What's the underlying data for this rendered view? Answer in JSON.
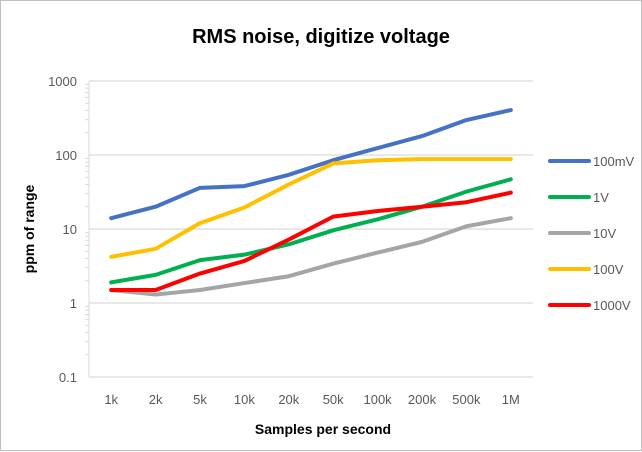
{
  "chart_data": {
    "type": "line",
    "title": "RMS noise, digitize voltage",
    "xlabel": "Samples per second",
    "ylabel": "ppm of range",
    "yscale": "log",
    "ylim": [
      0.1,
      1000
    ],
    "yticks": [
      "0.1",
      "1",
      "10",
      "100",
      "1000"
    ],
    "grid": true,
    "legend": "right",
    "categories": [
      "1k",
      "2k",
      "5k",
      "10k",
      "20k",
      "50k",
      "100k",
      "200k",
      "500k",
      "1M"
    ],
    "series": [
      {
        "name": "100mV",
        "color": "#4472c4",
        "values": [
          14,
          20,
          36,
          38,
          54,
          85,
          124,
          180,
          297,
          405
        ]
      },
      {
        "name": "1V",
        "color": "#00b050",
        "values": [
          1.9,
          2.4,
          3.8,
          4.5,
          6.2,
          9.6,
          13.5,
          20,
          32,
          47
        ]
      },
      {
        "name": "10V",
        "color": "#a5a5a5",
        "values": [
          1.5,
          1.3,
          1.5,
          1.86,
          2.3,
          3.4,
          4.8,
          6.7,
          10.9,
          14
        ]
      },
      {
        "name": "100V",
        "color": "#ffc000",
        "values": [
          4.2,
          5.4,
          12,
          19.5,
          40,
          77,
          85,
          88,
          88,
          88
        ]
      },
      {
        "name": "1000V",
        "color": "#ff0000",
        "values": [
          1.5,
          1.5,
          2.5,
          3.7,
          7.2,
          14.7,
          17.5,
          20,
          23,
          31
        ]
      }
    ]
  }
}
